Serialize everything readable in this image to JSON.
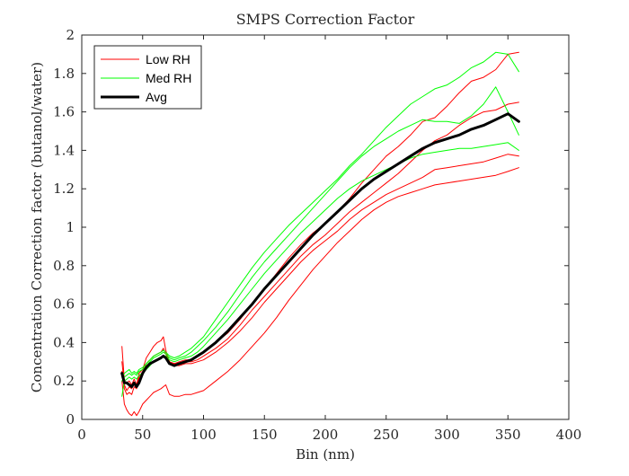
{
  "chart_data": {
    "type": "line",
    "title": "SMPS Correction Factor",
    "xlabel": "Bin (nm)",
    "ylabel": "Concentration Correction factor (butanol/water)",
    "xlim": [
      0,
      400
    ],
    "ylim": [
      0,
      2
    ],
    "xticks": [
      0,
      50,
      100,
      150,
      200,
      250,
      300,
      350,
      400
    ],
    "yticks": [
      0,
      0.2,
      0.4,
      0.6,
      0.8,
      1,
      1.2,
      1.4,
      1.6,
      1.8,
      2
    ],
    "grid": false,
    "legend": {
      "position": "top-left",
      "entries": [
        "Low RH",
        "Med RH",
        "Avg"
      ]
    },
    "colors": {
      "low": "#ff0000",
      "med": "#00ff00",
      "avg": "#000000"
    },
    "series": [
      {
        "name": "Low RH",
        "color": "#ff0000",
        "width": 1,
        "x": [
          33,
          35,
          37,
          39,
          41,
          43,
          45,
          47,
          50,
          53,
          56,
          59,
          62,
          65,
          67,
          69,
          72,
          76,
          80,
          85,
          90,
          95,
          100,
          110,
          120,
          130,
          140,
          150,
          160,
          170,
          180,
          190,
          200,
          210,
          220,
          230,
          240,
          250,
          260,
          270,
          280,
          290,
          300,
          310,
          320,
          330,
          340,
          350,
          359
        ],
        "y": [
          0.38,
          0.2,
          0.19,
          0.2,
          0.18,
          0.21,
          0.18,
          0.24,
          0.26,
          0.32,
          0.35,
          0.38,
          0.4,
          0.41,
          0.43,
          0.36,
          0.3,
          0.29,
          0.3,
          0.31,
          0.31,
          0.33,
          0.35,
          0.4,
          0.45,
          0.52,
          0.6,
          0.68,
          0.76,
          0.84,
          0.91,
          0.97,
          1.02,
          1.08,
          1.15,
          1.23,
          1.3,
          1.37,
          1.42,
          1.48,
          1.55,
          1.57,
          1.63,
          1.7,
          1.76,
          1.78,
          1.82,
          1.9,
          1.91
        ]
      },
      {
        "name": "",
        "color": "#ff0000",
        "width": 1,
        "x": [
          33,
          35,
          37,
          39,
          41,
          43,
          45,
          47,
          50,
          53,
          56,
          59,
          62,
          65,
          67,
          69,
          72,
          76,
          80,
          85,
          90,
          95,
          100,
          110,
          120,
          130,
          140,
          150,
          160,
          170,
          180,
          190,
          200,
          210,
          220,
          230,
          240,
          250,
          260,
          270,
          280,
          290,
          300,
          310,
          320,
          330,
          340,
          350,
          359
        ],
        "y": [
          0.3,
          0.18,
          0.15,
          0.17,
          0.16,
          0.19,
          0.17,
          0.22,
          0.25,
          0.29,
          0.31,
          0.33,
          0.34,
          0.35,
          0.37,
          0.34,
          0.3,
          0.29,
          0.29,
          0.3,
          0.3,
          0.31,
          0.33,
          0.37,
          0.42,
          0.49,
          0.57,
          0.64,
          0.71,
          0.78,
          0.85,
          0.91,
          0.96,
          1.02,
          1.08,
          1.13,
          1.18,
          1.23,
          1.28,
          1.34,
          1.4,
          1.45,
          1.48,
          1.53,
          1.57,
          1.6,
          1.61,
          1.64,
          1.65
        ]
      },
      {
        "name": "",
        "color": "#ff0000",
        "width": 1,
        "x": [
          33,
          35,
          37,
          39,
          41,
          43,
          45,
          47,
          50,
          53,
          56,
          59,
          62,
          65,
          67,
          69,
          72,
          76,
          80,
          85,
          90,
          95,
          100,
          110,
          120,
          130,
          140,
          150,
          160,
          170,
          180,
          190,
          200,
          210,
          220,
          230,
          240,
          250,
          260,
          270,
          280,
          290,
          300,
          310,
          320,
          330,
          340,
          350,
          359
        ],
        "y": [
          0.25,
          0.16,
          0.13,
          0.14,
          0.13,
          0.17,
          0.16,
          0.21,
          0.24,
          0.27,
          0.29,
          0.3,
          0.31,
          0.32,
          0.33,
          0.32,
          0.29,
          0.28,
          0.28,
          0.29,
          0.29,
          0.3,
          0.31,
          0.35,
          0.4,
          0.46,
          0.53,
          0.61,
          0.68,
          0.75,
          0.82,
          0.88,
          0.93,
          0.98,
          1.04,
          1.09,
          1.13,
          1.17,
          1.2,
          1.23,
          1.26,
          1.3,
          1.31,
          1.32,
          1.33,
          1.34,
          1.36,
          1.38,
          1.37
        ]
      },
      {
        "name": "",
        "color": "#ff0000",
        "width": 1,
        "x": [
          33,
          35,
          37,
          39,
          41,
          43,
          45,
          47,
          50,
          53,
          56,
          59,
          62,
          65,
          67,
          69,
          72,
          76,
          80,
          85,
          90,
          95,
          100,
          110,
          120,
          130,
          140,
          150,
          160,
          170,
          180,
          190,
          200,
          210,
          220,
          230,
          240,
          250,
          260,
          270,
          280,
          290,
          300,
          310,
          320,
          330,
          340,
          350,
          359
        ],
        "y": [
          0.2,
          0.08,
          0.05,
          0.03,
          0.02,
          0.04,
          0.02,
          0.04,
          0.08,
          0.1,
          0.12,
          0.14,
          0.15,
          0.16,
          0.17,
          0.18,
          0.13,
          0.12,
          0.12,
          0.13,
          0.13,
          0.14,
          0.15,
          0.2,
          0.25,
          0.31,
          0.38,
          0.45,
          0.53,
          0.62,
          0.7,
          0.78,
          0.85,
          0.92,
          0.98,
          1.04,
          1.09,
          1.13,
          1.16,
          1.18,
          1.2,
          1.22,
          1.23,
          1.24,
          1.25,
          1.26,
          1.27,
          1.29,
          1.31
        ]
      },
      {
        "name": "Med RH",
        "color": "#00ff00",
        "width": 1,
        "x": [
          33,
          35,
          37,
          39,
          41,
          43,
          45,
          47,
          50,
          53,
          56,
          59,
          62,
          65,
          67,
          69,
          72,
          76,
          80,
          85,
          90,
          95,
          100,
          110,
          120,
          130,
          140,
          150,
          160,
          170,
          180,
          190,
          200,
          210,
          220,
          230,
          240,
          250,
          260,
          270,
          280,
          290,
          300,
          310,
          320,
          330,
          340,
          350,
          359
        ],
        "y": [
          0.22,
          0.24,
          0.25,
          0.26,
          0.24,
          0.25,
          0.24,
          0.26,
          0.27,
          0.29,
          0.31,
          0.33,
          0.34,
          0.35,
          0.36,
          0.35,
          0.33,
          0.32,
          0.33,
          0.35,
          0.37,
          0.4,
          0.43,
          0.52,
          0.61,
          0.7,
          0.79,
          0.87,
          0.94,
          1.01,
          1.07,
          1.13,
          1.19,
          1.25,
          1.32,
          1.38,
          1.45,
          1.52,
          1.58,
          1.64,
          1.68,
          1.72,
          1.74,
          1.78,
          1.83,
          1.86,
          1.91,
          1.9,
          1.81
        ]
      },
      {
        "name": "",
        "color": "#00ff00",
        "width": 1,
        "x": [
          33,
          35,
          37,
          39,
          41,
          43,
          45,
          47,
          50,
          53,
          56,
          59,
          62,
          65,
          67,
          69,
          72,
          76,
          80,
          85,
          90,
          95,
          100,
          110,
          120,
          130,
          140,
          150,
          160,
          170,
          180,
          190,
          200,
          210,
          220,
          230,
          240,
          250,
          260,
          270,
          280,
          290,
          300,
          310,
          320,
          330,
          340,
          350,
          359
        ],
        "y": [
          0.2,
          0.22,
          0.23,
          0.24,
          0.23,
          0.24,
          0.23,
          0.25,
          0.26,
          0.28,
          0.3,
          0.32,
          0.33,
          0.34,
          0.35,
          0.34,
          0.32,
          0.31,
          0.32,
          0.33,
          0.35,
          0.38,
          0.41,
          0.48,
          0.56,
          0.65,
          0.74,
          0.82,
          0.89,
          0.96,
          1.03,
          1.1,
          1.17,
          1.24,
          1.31,
          1.37,
          1.42,
          1.46,
          1.5,
          1.53,
          1.56,
          1.55,
          1.55,
          1.54,
          1.58,
          1.64,
          1.73,
          1.6,
          1.48
        ]
      },
      {
        "name": "",
        "color": "#00ff00",
        "width": 1,
        "x": [
          33,
          35,
          37,
          39,
          41,
          43,
          45,
          47,
          50,
          53,
          56,
          59,
          62,
          65,
          67,
          69,
          72,
          76,
          80,
          85,
          90,
          95,
          100,
          110,
          120,
          130,
          140,
          150,
          160,
          170,
          180,
          190,
          200,
          210,
          220,
          230,
          240,
          250,
          260,
          270,
          280,
          290,
          300,
          310,
          320,
          330,
          340,
          350,
          359
        ],
        "y": [
          0.12,
          0.2,
          0.21,
          0.22,
          0.21,
          0.22,
          0.21,
          0.23,
          0.24,
          0.26,
          0.28,
          0.3,
          0.31,
          0.32,
          0.33,
          0.33,
          0.31,
          0.3,
          0.31,
          0.32,
          0.33,
          0.35,
          0.38,
          0.45,
          0.52,
          0.6,
          0.68,
          0.76,
          0.83,
          0.9,
          0.97,
          1.03,
          1.09,
          1.15,
          1.2,
          1.24,
          1.27,
          1.3,
          1.33,
          1.36,
          1.38,
          1.39,
          1.4,
          1.41,
          1.41,
          1.42,
          1.43,
          1.44,
          1.4
        ]
      },
      {
        "name": "Avg",
        "color": "#000000",
        "width": 3,
        "x": [
          33,
          35,
          37,
          39,
          41,
          43,
          45,
          47,
          50,
          53,
          56,
          59,
          62,
          65,
          67,
          69,
          72,
          76,
          80,
          85,
          90,
          95,
          100,
          110,
          120,
          130,
          140,
          150,
          160,
          170,
          180,
          190,
          200,
          210,
          220,
          230,
          240,
          250,
          260,
          270,
          280,
          290,
          300,
          310,
          320,
          330,
          340,
          350,
          359
        ],
        "y": [
          0.24,
          0.19,
          0.19,
          0.18,
          0.17,
          0.19,
          0.17,
          0.19,
          0.24,
          0.27,
          0.29,
          0.3,
          0.31,
          0.32,
          0.33,
          0.32,
          0.29,
          0.28,
          0.29,
          0.3,
          0.31,
          0.33,
          0.35,
          0.4,
          0.46,
          0.53,
          0.6,
          0.68,
          0.75,
          0.82,
          0.89,
          0.96,
          1.02,
          1.08,
          1.14,
          1.2,
          1.25,
          1.29,
          1.33,
          1.37,
          1.41,
          1.44,
          1.46,
          1.48,
          1.51,
          1.53,
          1.56,
          1.59,
          1.55
        ]
      }
    ]
  }
}
